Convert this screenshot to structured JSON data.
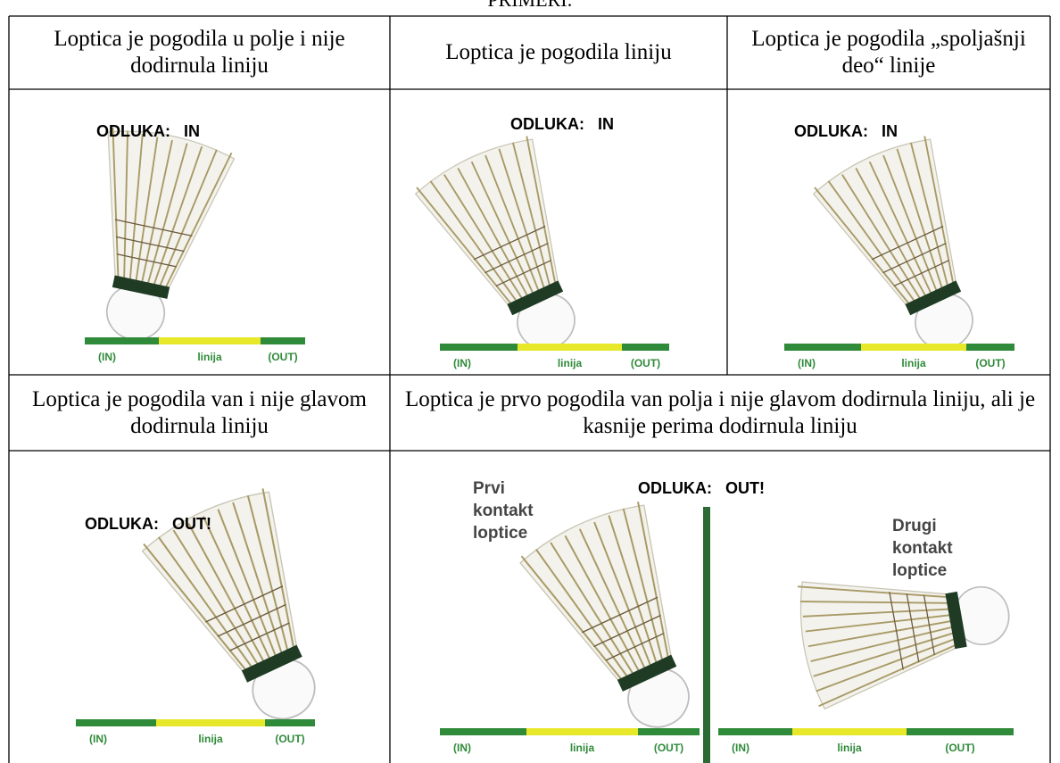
{
  "title": "PRIMERI:",
  "table": {
    "rows": [
      [
        "Loptica je pogodila u polje i nije dodirnula liniju",
        "Loptica je pogodila liniju",
        "Loptica je pogodila „spoljašnji deo“ linije"
      ],
      [
        "Loptica je pogodila van i nije glavom dodirnula liniju",
        "Loptica je prvo pogodila van polja i nije glavom dodirnula liniju, ali je kasnije perima dodirnula liniju"
      ]
    ]
  },
  "panels": [
    {
      "decision": "ODLUKA:   IN",
      "line_labels": [
        "(IN)",
        "linija",
        "(OUT)"
      ]
    },
    {
      "decision": "ODLUKA:   IN",
      "line_labels": [
        "(IN)",
        "linija",
        "(OUT)"
      ]
    },
    {
      "decision": "ODLUKA:   IN",
      "line_labels": [
        "(IN)",
        "linija",
        "(OUT)"
      ]
    },
    {
      "decision": "ODLUKA:   OUT!",
      "line_labels": [
        "(IN)",
        "linija",
        "(OUT)"
      ]
    },
    {
      "decision": "ODLUKA:   OUT!",
      "line_labels": [
        "(IN)",
        "linija",
        "(OUT)",
        "(IN)",
        "linija",
        "(OUT)"
      ],
      "notes": [
        [
          "Prvi",
          "kontakt",
          "loptice"
        ],
        [
          "Drugi",
          "kontakt",
          "loptice"
        ]
      ]
    }
  ]
}
